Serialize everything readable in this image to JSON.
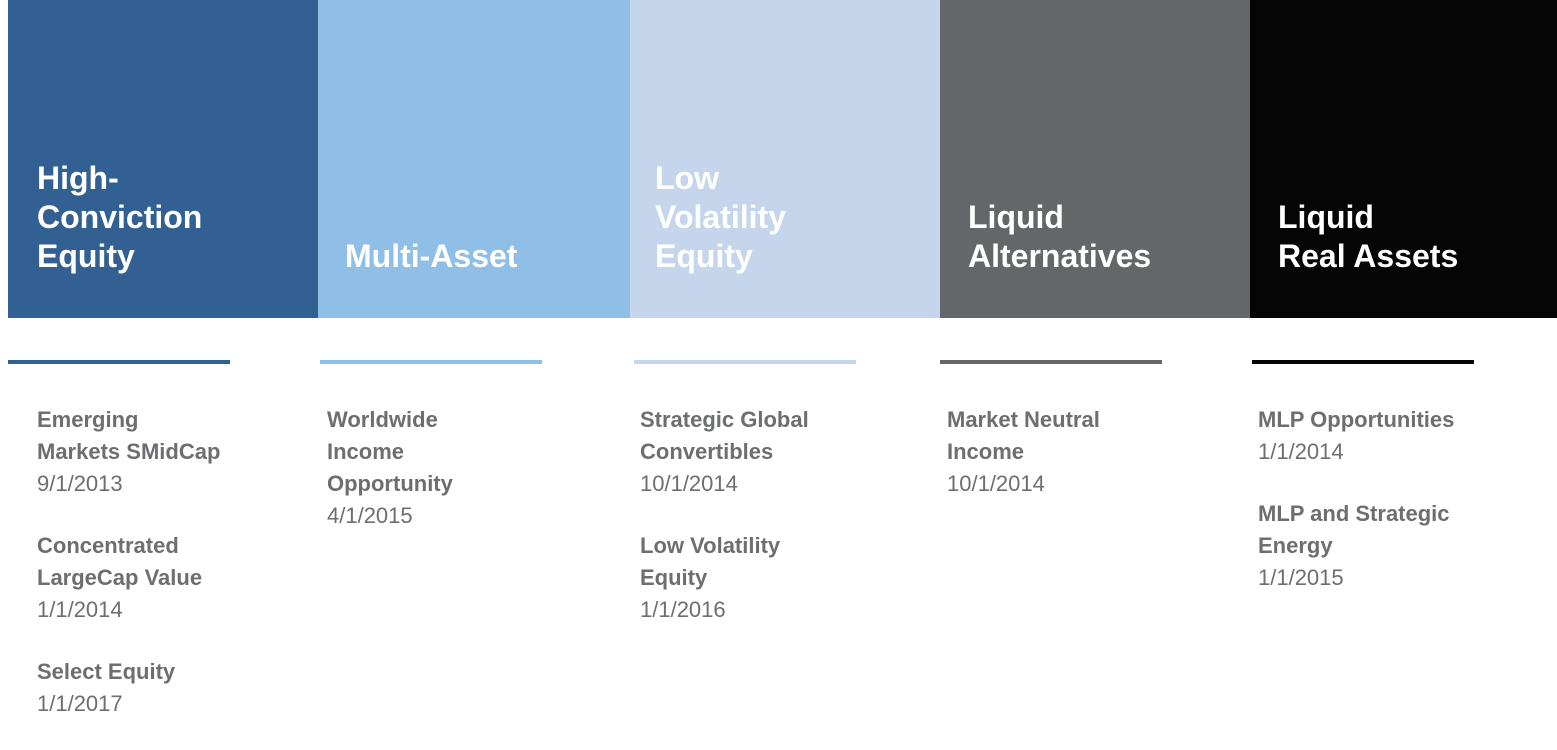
{
  "columns": [
    {
      "title_lines": [
        "High-",
        "Conviction",
        "Equity"
      ],
      "color": "#326092",
      "funds": [
        {
          "name_lines": [
            "Emerging",
            "Markets SMidCap"
          ],
          "date": "9/1/2013"
        },
        {
          "name_lines": [
            "Concentrated",
            "LargeCap Value"
          ],
          "date": "1/1/2014"
        },
        {
          "name_lines": [
            "Select Equity"
          ],
          "date": "1/1/2017"
        }
      ]
    },
    {
      "title_lines": [
        "Multi-Asset"
      ],
      "color": "#8fbfe6",
      "funds": [
        {
          "name_lines": [
            "Worldwide",
            "Income",
            "Opportunity"
          ],
          "date": "4/1/2015"
        }
      ]
    },
    {
      "title_lines": [
        "Low",
        "Volatility",
        "Equity"
      ],
      "color": "#c5d6ec",
      "funds": [
        {
          "name_lines": [
            "Strategic Global",
            "Convertibles"
          ],
          "date": "10/1/2014"
        },
        {
          "name_lines": [
            "Low Volatility",
            "Equity"
          ],
          "date": "1/1/2016"
        }
      ]
    },
    {
      "title_lines": [
        "Liquid",
        "Alternatives"
      ],
      "color": "#64666a",
      "funds": [
        {
          "name_lines": [
            "Market Neutral",
            "Income"
          ],
          "date": "10/1/2014"
        }
      ]
    },
    {
      "title_lines": [
        "Liquid",
        "Real Assets"
      ],
      "color": "#050505",
      "funds": [
        {
          "name_lines": [
            "MLP Opportunities"
          ],
          "date": "1/1/2014"
        },
        {
          "name_lines": [
            "MLP and Strategic",
            "Energy"
          ],
          "date": "1/1/2015"
        }
      ]
    }
  ]
}
